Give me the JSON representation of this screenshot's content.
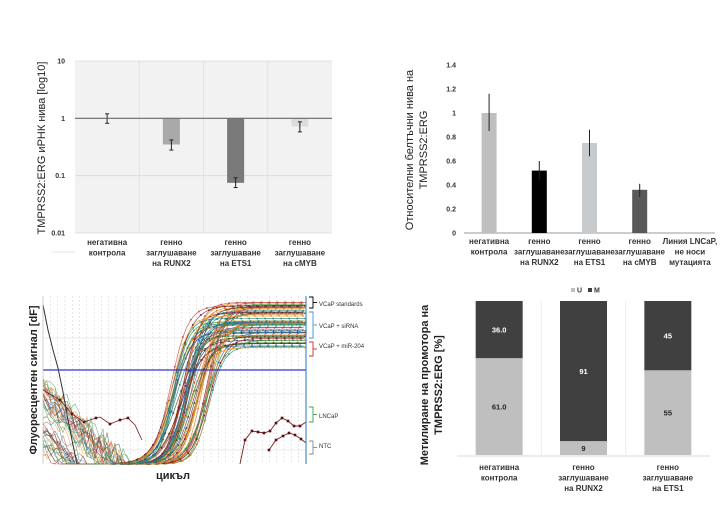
{
  "chart_data": [
    {
      "id": "mrna",
      "type": "bar",
      "title": "",
      "ylabel": "TMPRSS2:ERG иРНК нива [log10]",
      "xlabel": "",
      "yscale": "log",
      "ylim": [
        0.01,
        10
      ],
      "yticks": [
        "10",
        "1",
        "0.1",
        "0.01"
      ],
      "ytick_values": [
        10,
        1,
        0.1,
        0.01
      ],
      "baseline": 1,
      "categories": [
        [
          "негативна",
          "контрола"
        ],
        [
          "генно",
          "заглушаване",
          "на RUNX2"
        ],
        [
          "генно",
          "заглушаване",
          "на ETS1"
        ],
        [
          "генно",
          "заглушаване",
          "на cMYB"
        ]
      ],
      "values": [
        1.0,
        0.35,
        0.075,
        0.72
      ],
      "errors": [
        [
          0.82,
          1.2
        ],
        [
          0.28,
          0.42
        ],
        [
          0.062,
          0.092
        ],
        [
          0.58,
          0.87
        ]
      ],
      "colors": [
        "#dcdcdc",
        "#a9a9a9",
        "#7a7a7a",
        "#dcdcdc"
      ],
      "grid": true
    },
    {
      "id": "protein",
      "type": "bar",
      "title": "",
      "ylabel_lines": [
        "Относителни белтъчни нива на",
        "TMPRSS2:ERG"
      ],
      "xlabel": "",
      "ylim": [
        0,
        1.4
      ],
      "yticks": [
        "0",
        "0.2",
        "0.4",
        "0.6",
        "0.8",
        "1",
        "1.2",
        "1.4"
      ],
      "ytick_values": [
        0,
        0.2,
        0.4,
        0.6,
        0.8,
        1.0,
        1.2,
        1.4
      ],
      "categories": [
        [
          "негативна",
          "контрола"
        ],
        [
          "генно",
          "заглушаване",
          "на RUNX2"
        ],
        [
          "генно",
          "заглушаване",
          "на ETS1"
        ],
        [
          "генно",
          "заглушаване",
          "на cMYB"
        ],
        [
          "Линия LNCaP,",
          "не носи",
          "мутацията"
        ]
      ],
      "values": [
        1.0,
        0.52,
        0.75,
        0.36,
        0.0
      ],
      "errors": [
        [
          0.85,
          1.16
        ],
        [
          0.44,
          0.6
        ],
        [
          0.64,
          0.86
        ],
        [
          0.3,
          0.41
        ],
        [
          0,
          0
        ]
      ],
      "colors": [
        "#bfbfbf",
        "#000000",
        "#c8cbcd",
        "#595959",
        "#bfbfbf"
      ],
      "grid": false
    },
    {
      "id": "qpcr",
      "type": "line",
      "title": "",
      "ylabel": "Флуоресцентен сигнал [dF]",
      "xlabel": "цикъл",
      "threshold_color": "#3333cc",
      "groups": [
        {
          "name": "VCaP standards",
          "bracket_color": "#000000"
        },
        {
          "name": "VCaP + siRNA",
          "bracket_color": "#4a90c8"
        },
        {
          "name": "VCaP + miR-204",
          "bracket_color": "#c0392b"
        },
        {
          "name": "LNCaP",
          "bracket_color": "#3fa34d"
        },
        {
          "name": "NTC",
          "bracket_color": "#888888"
        }
      ],
      "series_palette": [
        "#e07b20",
        "#1f8a8a",
        "#7b1e1e",
        "#f0a030",
        "#2d6fa8",
        "#444444",
        "#c0504d",
        "#3e9a3e"
      ]
    },
    {
      "id": "methylation",
      "type": "bar",
      "stacked": true,
      "title": "",
      "ylabel_lines": [
        "Метилиране на промотора на",
        "TMPRSS2:ERG [%]"
      ],
      "xlabel": "",
      "ylim": [
        0,
        100
      ],
      "legend": [
        {
          "name": "U",
          "color": "#bfbfbf"
        },
        {
          "name": "M",
          "color": "#404040"
        }
      ],
      "legend_position": "top",
      "categories": [
        [
          "негативна",
          "контрола"
        ],
        [
          "генно",
          "заглушаване",
          "на RUNX2"
        ],
        [
          "генно",
          "заглушаване",
          "на ETS1"
        ]
      ],
      "series": [
        {
          "name": "U",
          "values": [
            61.0,
            9,
            55
          ],
          "labels": [
            "61.0",
            "9",
            "55"
          ]
        },
        {
          "name": "M",
          "values": [
            36.0,
            91,
            45
          ],
          "labels": [
            "36.0",
            "91",
            "45"
          ]
        }
      ]
    }
  ]
}
